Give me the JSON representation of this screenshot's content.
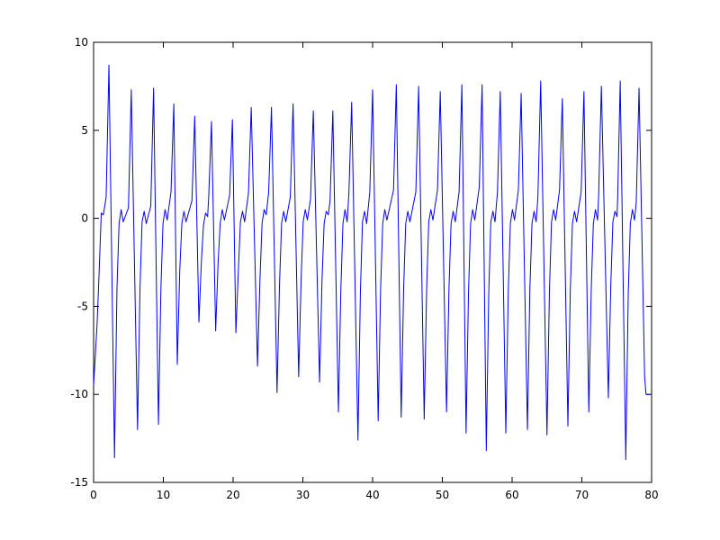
{
  "chart_data": {
    "type": "line",
    "color": "#0000ff",
    "xlim": [
      0,
      80
    ],
    "ylim": [
      -15,
      10
    ],
    "xticks": [
      0,
      10,
      20,
      30,
      40,
      50,
      60,
      70,
      80
    ],
    "yticks": [
      -15,
      -10,
      -5,
      0,
      5,
      10
    ],
    "grid": false,
    "x": [
      0,
      0.5,
      0.8,
      1.1,
      1.4,
      1.8,
      2.2,
      3.0,
      3.35,
      3.65,
      3.95,
      4.25,
      5.0,
      5.4,
      6.3,
      6.65,
      6.95,
      7.25,
      7.55,
      8.2,
      8.6,
      9.3,
      9.65,
      9.95,
      10.25,
      10.55,
      11.1,
      11.5,
      12.0,
      12.35,
      12.65,
      12.95,
      13.25,
      14.1,
      14.5,
      15.1,
      15.45,
      15.75,
      16.05,
      16.35,
      16.5,
      16.9,
      17.5,
      17.85,
      18.15,
      18.45,
      18.75,
      19.5,
      19.9,
      20.4,
      20.75,
      21.05,
      21.35,
      21.65,
      22.2,
      22.6,
      23.5,
      23.85,
      24.15,
      24.45,
      24.75,
      25.1,
      25.5,
      26.3,
      26.65,
      26.95,
      27.25,
      27.55,
      28.2,
      28.6,
      29.4,
      29.75,
      30.05,
      30.35,
      30.65,
      31.1,
      31.5,
      32.4,
      32.75,
      33.05,
      33.35,
      33.65,
      33.9,
      34.3,
      35.1,
      35.45,
      35.75,
      36.05,
      36.35,
      36.6,
      37.0,
      37.9,
      38.25,
      38.55,
      38.85,
      39.15,
      39.6,
      40.0,
      40.8,
      41.15,
      41.45,
      41.75,
      42.05,
      43.0,
      43.4,
      44.1,
      44.45,
      44.75,
      45.05,
      45.35,
      46.2,
      46.6,
      47.4,
      47.75,
      48.05,
      48.35,
      48.65,
      49.3,
      49.7,
      50.6,
      50.95,
      51.25,
      51.55,
      51.85,
      52.4,
      52.8,
      53.4,
      53.75,
      54.05,
      54.35,
      54.65,
      55.3,
      55.7,
      56.3,
      56.65,
      56.95,
      57.25,
      57.55,
      57.9,
      58.3,
      59.1,
      59.45,
      59.75,
      60.05,
      60.35,
      60.9,
      61.3,
      62.2,
      62.55,
      62.85,
      63.15,
      63.45,
      63.7,
      64.1,
      65.0,
      65.35,
      65.65,
      65.95,
      66.25,
      66.8,
      67.2,
      68.0,
      68.35,
      68.65,
      68.95,
      69.25,
      69.9,
      70.3,
      71.0,
      71.35,
      71.65,
      71.95,
      72.25,
      72.4,
      72.8,
      73.8,
      74.15,
      74.45,
      74.75,
      75.05,
      75.15,
      75.5,
      76.3,
      76.65,
      76.95,
      77.25,
      77.55,
      77.8,
      78.2,
      79.0,
      79.2,
      79.8
    ],
    "values": [
      -9.5,
      -6,
      -3,
      0.3,
      0.2,
      1.2,
      8.7,
      -13.6,
      -4,
      -0.3,
      0.5,
      -0.2,
      0.6,
      7.3,
      -12,
      -4,
      -0.2,
      0.4,
      -0.3,
      0.7,
      7.4,
      -11.7,
      -4,
      -0.3,
      0.5,
      -0.1,
      1.5,
      6.5,
      -8.3,
      -3,
      -0.3,
      0.4,
      -0.2,
      1.0,
      5.8,
      -5.9,
      -2.5,
      -0.4,
      0.3,
      0.1,
      1.2,
      5.5,
      -6.4,
      -2.5,
      -0.3,
      0.5,
      -0.1,
      1.3,
      5.6,
      -6.5,
      -3,
      -0.2,
      0.4,
      -0.2,
      1.4,
      6.3,
      -8.4,
      -3.5,
      -0.3,
      0.5,
      0.2,
      1.5,
      6.3,
      -9.9,
      -3.8,
      -0.3,
      0.4,
      -0.2,
      1.2,
      6.5,
      -9,
      -3.5,
      -0.2,
      0.5,
      -0.1,
      1.1,
      6.1,
      -9.3,
      -3.5,
      -0.3,
      0.4,
      0.2,
      1.0,
      6.1,
      -11,
      -4,
      -0.3,
      0.5,
      -0.2,
      1.4,
      6.6,
      -12.6,
      -4.2,
      -0.2,
      0.4,
      -0.3,
      1.5,
      7.3,
      -11.5,
      -4,
      -0.3,
      0.5,
      -0.1,
      1.6,
      7.6,
      -11.3,
      -4,
      -0.3,
      0.4,
      -0.2,
      1.5,
      7.5,
      -11.4,
      -4,
      -0.2,
      0.5,
      -0.1,
      1.6,
      7.2,
      -11,
      -4,
      -0.3,
      0.4,
      -0.2,
      1.5,
      7.6,
      -12.2,
      -4.2,
      -0.3,
      0.5,
      -0.1,
      1.8,
      7.6,
      -13.2,
      -4.3,
      -0.2,
      0.4,
      -0.2,
      1.5,
      7.2,
      -12.2,
      -4.2,
      -0.3,
      0.5,
      -0.1,
      1.6,
      7.1,
      -12,
      -4,
      -0.3,
      0.4,
      -0.2,
      1.2,
      7.8,
      -12.3,
      -4.2,
      -0.2,
      0.5,
      -0.1,
      1.6,
      6.8,
      -11.8,
      -4,
      -0.3,
      0.4,
      -0.2,
      1.5,
      7.2,
      -11,
      -4,
      -0.3,
      0.5,
      -0.1,
      1.2,
      7.5,
      -10.2,
      -3.8,
      -0.2,
      0.4,
      0.1,
      1.4,
      7.8,
      -13.7,
      -4.3,
      -0.3,
      0.5,
      -0.1,
      0.9,
      7.4,
      -9,
      -10,
      -10
    ]
  }
}
